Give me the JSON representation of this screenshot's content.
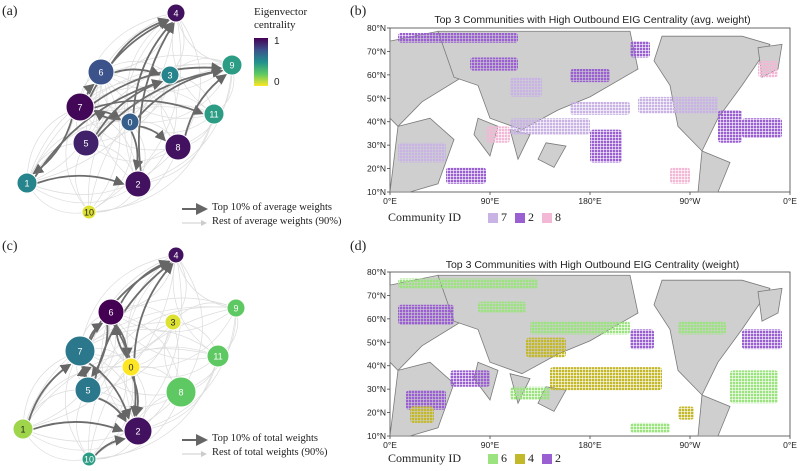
{
  "panels": {
    "a": {
      "label": "(a)",
      "colorbar": {
        "title_line1": "Eigenvector",
        "title_line2": "centrality",
        "max_label": "1",
        "min_label": "0"
      },
      "legend": {
        "strong": "Top 10% of average weights",
        "weak": "Rest  of average weights (90%)"
      },
      "nodes": [
        {
          "id": "4",
          "eig": 0.95
        },
        {
          "id": "6",
          "eig": 0.75
        },
        {
          "id": "3",
          "eig": 0.55
        },
        {
          "id": "9",
          "eig": 0.45
        },
        {
          "id": "7",
          "eig": 0.98
        },
        {
          "id": "0",
          "eig": 0.7
        },
        {
          "id": "11",
          "eig": 0.45
        },
        {
          "id": "5",
          "eig": 0.9
        },
        {
          "id": "8",
          "eig": 0.95
        },
        {
          "id": "1",
          "eig": 0.55
        },
        {
          "id": "2",
          "eig": 0.95
        },
        {
          "id": "10",
          "eig": 0.05
        }
      ]
    },
    "b": {
      "label": "(b)",
      "title": "Top 3 Communities with High Outbound EIG Centrality (avg. weight)",
      "yticks": [
        "80°N",
        "70°N",
        "60°N",
        "50°N",
        "40°N",
        "30°N",
        "20°N",
        "10°N"
      ],
      "xticks": [
        "0°E",
        "90°E",
        "180°E",
        "90°W",
        "0°E"
      ],
      "legend_title": "Community ID",
      "legend": [
        {
          "id": "7",
          "color": "#c9b3e4"
        },
        {
          "id": "2",
          "color": "#9a5fd1"
        },
        {
          "id": "8",
          "color": "#f2b8d6"
        }
      ]
    },
    "c": {
      "label": "(c)",
      "legend": {
        "strong": "Top 10% of total weights",
        "weak": "Rest  of total weights (90%)"
      },
      "nodes": [
        {
          "id": "4",
          "eig": 0.95
        },
        {
          "id": "6",
          "eig": 1.0
        },
        {
          "id": "3",
          "eig": 0.05
        },
        {
          "id": "9",
          "eig": 0.25
        },
        {
          "id": "7",
          "eig": 0.6
        },
        {
          "id": "0",
          "eig": 0.0
        },
        {
          "id": "11",
          "eig": 0.25
        },
        {
          "id": "5",
          "eig": 0.6
        },
        {
          "id": "8",
          "eig": 0.25
        },
        {
          "id": "1",
          "eig": 0.15
        },
        {
          "id": "2",
          "eig": 0.95
        },
        {
          "id": "10",
          "eig": 0.45
        }
      ]
    },
    "d": {
      "label": "(d)",
      "title": "Top 3 Communities with High Outbound EIG Centrality (weight)",
      "yticks": [
        "80°N",
        "70°N",
        "60°N",
        "50°N",
        "40°N",
        "30°N",
        "20°N",
        "10°N"
      ],
      "xticks": [
        "0°E",
        "90°E",
        "180°E",
        "90°W",
        "0°E"
      ],
      "legend_title": "Community ID",
      "legend": [
        {
          "id": "6",
          "color": "#9be37f"
        },
        {
          "id": "4",
          "color": "#c2b82a"
        },
        {
          "id": "2",
          "color": "#9a5fd1"
        }
      ]
    }
  }
}
